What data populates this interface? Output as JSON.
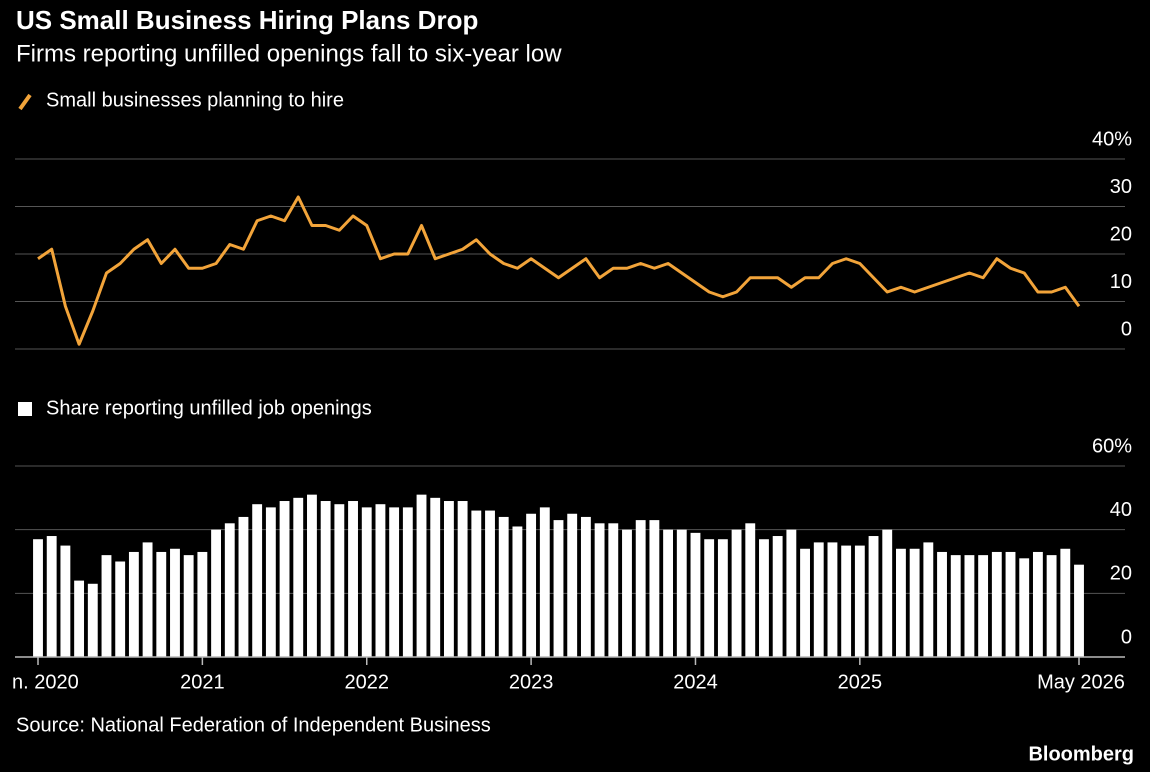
{
  "header": {
    "title": "US Small Business Hiring Plans Drop",
    "subtitle": "Firms reporting unfilled openings fall to six-year low"
  },
  "chart_data": [
    {
      "type": "line",
      "grid": true,
      "series": [
        {
          "name": "Small businesses planning to hire",
          "color": "#f2a43a",
          "values": [
            19,
            21,
            9,
            1,
            8,
            16,
            18,
            21,
            23,
            18,
            21,
            17,
            17,
            18,
            22,
            21,
            27,
            28,
            27,
            32,
            26,
            26,
            25,
            28,
            26,
            19,
            20,
            20,
            26,
            19,
            20,
            21,
            23,
            20,
            18,
            17,
            19,
            17,
            15,
            17,
            19,
            15,
            17,
            17,
            18,
            17,
            18,
            16,
            14,
            12,
            11,
            12,
            15,
            15,
            15,
            13,
            15,
            15,
            18,
            19,
            18,
            15,
            12,
            13,
            12,
            13,
            14,
            15,
            16,
            15,
            19,
            17,
            16,
            12,
            12,
            13,
            9
          ]
        }
      ],
      "ylim": [
        0,
        40
      ],
      "yticks": [
        0,
        10,
        20,
        30,
        {
          "value": 40,
          "label": "40%"
        }
      ]
    },
    {
      "type": "bar",
      "grid": true,
      "categories": [
        "n. 2020",
        null,
        null,
        null,
        null,
        null,
        null,
        null,
        null,
        null,
        null,
        null,
        "2021",
        null,
        null,
        null,
        null,
        null,
        null,
        null,
        null,
        null,
        null,
        null,
        "2022",
        null,
        null,
        null,
        null,
        null,
        null,
        null,
        null,
        null,
        null,
        null,
        "2023",
        null,
        null,
        null,
        null,
        null,
        null,
        null,
        null,
        null,
        null,
        null,
        "2024",
        null,
        null,
        null,
        null,
        null,
        null,
        null,
        null,
        null,
        null,
        null,
        "2025",
        null,
        null,
        null,
        null,
        null,
        null,
        null,
        null,
        null,
        null,
        null,
        null,
        null,
        null,
        null,
        "May 2026"
      ],
      "series": [
        {
          "name": "Share reporting unfilled job openings",
          "color": "#ffffff",
          "values": [
            37,
            38,
            35,
            24,
            23,
            32,
            30,
            33,
            36,
            33,
            34,
            32,
            33,
            40,
            42,
            44,
            48,
            47,
            49,
            50,
            51,
            49,
            48,
            49,
            47,
            48,
            47,
            47,
            51,
            50,
            49,
            49,
            46,
            46,
            44,
            41,
            45,
            47,
            43,
            45,
            44,
            42,
            42,
            40,
            43,
            43,
            40,
            40,
            39,
            37,
            37,
            40,
            42,
            37,
            38,
            40,
            34,
            36,
            36,
            35,
            35,
            38,
            40,
            34,
            34,
            36,
            33,
            32,
            32,
            32,
            33,
            33,
            31,
            33,
            32,
            34,
            29
          ]
        }
      ],
      "ylim": [
        0,
        60
      ],
      "yticks": [
        0,
        20,
        40,
        {
          "value": 60,
          "label": "60%"
        }
      ]
    }
  ],
  "footer": {
    "source": "Source: National Federation of Independent Business",
    "brand": "Bloomberg"
  }
}
